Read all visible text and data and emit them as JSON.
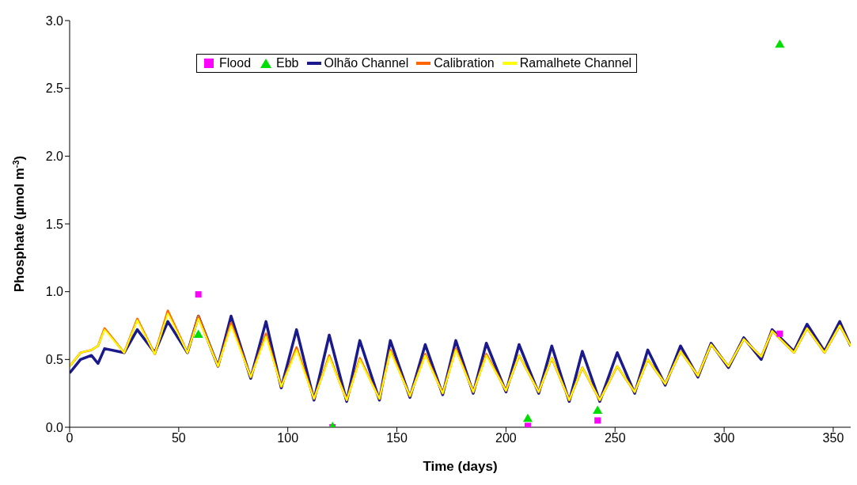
{
  "chart_data": {
    "type": "line",
    "xlabel": "Time (days)",
    "ylabel": "Phosphate (µmol m$^{-3}$)",
    "xlim": [
      0,
      358
    ],
    "xticks": [
      0,
      50,
      100,
      150,
      200,
      250,
      300,
      350
    ],
    "ylim": [
      0,
      3
    ],
    "yticks": [
      {
        "value": 0,
        "label": "0.0"
      },
      {
        "value": 0.5,
        "label": "0.5"
      },
      {
        "value": 1,
        "label": "1.0"
      },
      {
        "value": 1.5,
        "label": "1.5"
      },
      {
        "value": 2,
        "label": "2.0"
      },
      {
        "value": 2.5,
        "label": "2.5"
      },
      {
        "value": 3,
        "label": "3.0"
      }
    ],
    "grid": false,
    "legend": "top",
    "line_style": "solid",
    "series": [
      {
        "name": "Flood",
        "type": "scatter",
        "marker": "square",
        "color": "#ff00ff",
        "x": [
          59,
          120.5,
          210,
          242,
          325.5
        ],
        "values": [
          0.98,
          0.0,
          0.01,
          0.05,
          0.69
        ]
      },
      {
        "name": "Ebb",
        "type": "scatter",
        "marker": "triangle",
        "color": "#00dd00",
        "x": [
          59,
          120.5,
          210,
          242,
          325.5
        ],
        "values": [
          0.68,
          0.0,
          0.06,
          0.12,
          2.82
        ]
      },
      {
        "name": "Olhão Channel",
        "type": "line",
        "color": "#1a1a8c",
        "x": [
          0,
          5,
          10,
          13,
          16,
          25,
          31,
          39,
          45,
          54,
          59,
          68,
          74,
          83,
          90,
          97,
          104,
          112,
          119,
          127,
          133,
          142,
          147,
          156,
          163,
          171,
          177,
          185,
          191,
          200,
          206,
          215,
          221,
          229,
          235,
          243,
          251,
          259,
          265,
          273,
          280,
          288,
          294,
          302,
          309,
          317,
          322,
          332,
          338,
          346,
          353,
          358
        ],
        "values": [
          0.4,
          0.5,
          0.53,
          0.47,
          0.58,
          0.55,
          0.72,
          0.55,
          0.78,
          0.55,
          0.82,
          0.45,
          0.82,
          0.36,
          0.78,
          0.29,
          0.72,
          0.2,
          0.68,
          0.19,
          0.64,
          0.2,
          0.64,
          0.22,
          0.61,
          0.24,
          0.64,
          0.25,
          0.62,
          0.26,
          0.61,
          0.25,
          0.6,
          0.19,
          0.56,
          0.19,
          0.55,
          0.25,
          0.57,
          0.31,
          0.6,
          0.37,
          0.62,
          0.44,
          0.66,
          0.5,
          0.72,
          0.56,
          0.76,
          0.56,
          0.78,
          0.6
        ]
      },
      {
        "name": "Calibration",
        "type": "line",
        "color": "#ff6600",
        "x": [
          0,
          5,
          10,
          13,
          16,
          25,
          31,
          39,
          45,
          54,
          59,
          68,
          74,
          83,
          90,
          97,
          104,
          112,
          119,
          127,
          133,
          142,
          147,
          156,
          163,
          171,
          177,
          185,
          191,
          200,
          206,
          215,
          221,
          229,
          235,
          243,
          251,
          259,
          265,
          273,
          280,
          288,
          294,
          302,
          309,
          317,
          322,
          332,
          338,
          346,
          353,
          358
        ],
        "values": [
          0.45,
          0.55,
          0.57,
          0.6,
          0.73,
          0.55,
          0.8,
          0.54,
          0.86,
          0.55,
          0.82,
          0.45,
          0.77,
          0.37,
          0.69,
          0.3,
          0.59,
          0.21,
          0.53,
          0.2,
          0.51,
          0.21,
          0.57,
          0.23,
          0.54,
          0.25,
          0.58,
          0.26,
          0.54,
          0.27,
          0.53,
          0.26,
          0.51,
          0.2,
          0.44,
          0.2,
          0.45,
          0.26,
          0.5,
          0.32,
          0.56,
          0.38,
          0.61,
          0.45,
          0.65,
          0.52,
          0.71,
          0.55,
          0.73,
          0.55,
          0.75,
          0.6
        ]
      },
      {
        "name": "Ramalhete Channel",
        "type": "line",
        "color": "#ffff00",
        "x": [
          0,
          5,
          10,
          13,
          16,
          25,
          31,
          39,
          45,
          54,
          59,
          68,
          74,
          83,
          90,
          97,
          104,
          112,
          119,
          127,
          133,
          142,
          147,
          156,
          163,
          171,
          177,
          185,
          191,
          200,
          206,
          215,
          221,
          229,
          235,
          243,
          251,
          259,
          265,
          273,
          280,
          288,
          294,
          302,
          309,
          317,
          322,
          332,
          338,
          346,
          353,
          358
        ],
        "values": [
          0.45,
          0.55,
          0.57,
          0.6,
          0.72,
          0.55,
          0.79,
          0.54,
          0.84,
          0.55,
          0.8,
          0.45,
          0.75,
          0.37,
          0.67,
          0.3,
          0.57,
          0.21,
          0.52,
          0.2,
          0.5,
          0.21,
          0.56,
          0.23,
          0.53,
          0.25,
          0.57,
          0.26,
          0.53,
          0.27,
          0.53,
          0.26,
          0.51,
          0.2,
          0.44,
          0.2,
          0.45,
          0.26,
          0.5,
          0.32,
          0.56,
          0.38,
          0.61,
          0.45,
          0.65,
          0.52,
          0.71,
          0.55,
          0.73,
          0.55,
          0.75,
          0.6
        ]
      }
    ]
  }
}
